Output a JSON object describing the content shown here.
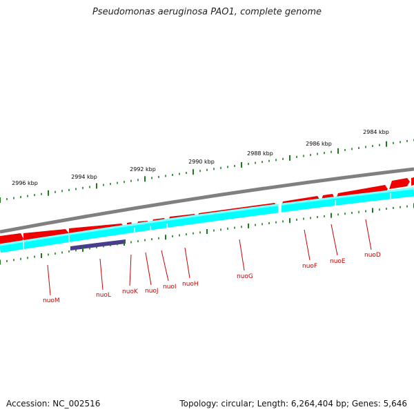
{
  "title": "Pseudomonas aeruginosa PAO1, complete genome",
  "footer": {
    "accession": "Accession: NC_002516",
    "summary": "Topology: circular; Length: 6,264,404 bp; Genes: 5,646"
  },
  "kbp_labels": [
    "2984 kbp",
    "2986 kbp",
    "2988 kbp",
    "2990 kbp",
    "2992 kbp",
    "2994 kbp",
    "2996 kbp"
  ],
  "genes": [
    "nuoD",
    "nuoE",
    "nuoF",
    "nuoG",
    "nuoH",
    "nuoI",
    "nuoJ",
    "nuoK",
    "nuoL",
    "nuoM"
  ],
  "colors": {
    "backbone": "#808080",
    "forward_feature": "#ee0000",
    "cds_track": "#00ffff",
    "highlight": "#4b3b8f",
    "tick": "#1a7a1a",
    "gene_label": "#cc0000"
  }
}
